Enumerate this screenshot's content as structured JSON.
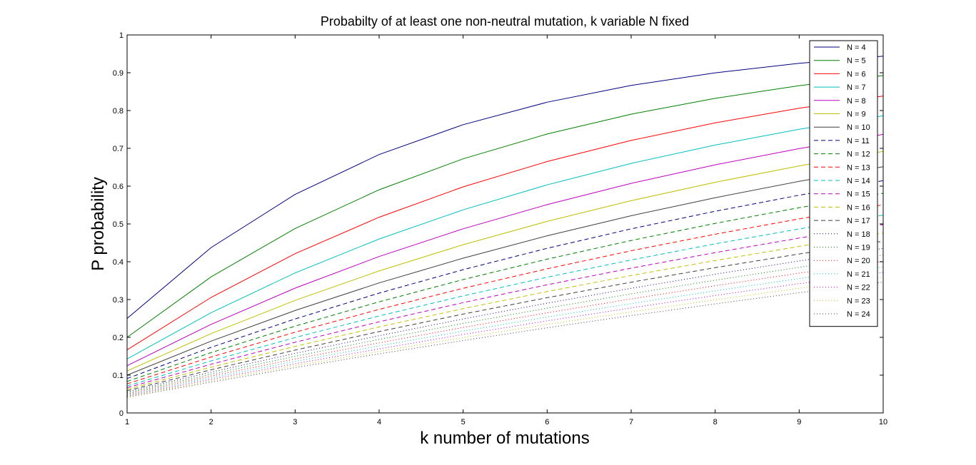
{
  "chart_data": {
    "type": "line",
    "title": "Probabilty of at least one non-neutral mutation, k variable N fixed",
    "xlabel": "k number of mutations",
    "ylabel": "P probability",
    "x": [
      1,
      2,
      3,
      4,
      5,
      6,
      7,
      8,
      9,
      10
    ],
    "xlim": [
      1,
      10
    ],
    "ylim": [
      0,
      1
    ],
    "xticks": [
      "1",
      "2",
      "3",
      "4",
      "5",
      "6",
      "7",
      "8",
      "9",
      "10"
    ],
    "yticks": [
      "0",
      "0.1",
      "0.2",
      "0.3",
      "0.4",
      "0.5",
      "0.6",
      "0.7",
      "0.8",
      "0.9",
      "1"
    ],
    "grid": false,
    "legend_position": "top-right",
    "series": [
      {
        "name": "N = 4",
        "color": "#00007f",
        "style": "solid",
        "values": [
          0.25,
          0.4375,
          0.5781,
          0.6836,
          0.7627,
          0.822,
          0.8665,
          0.8999,
          0.9249,
          0.9437
        ]
      },
      {
        "name": "N = 5",
        "color": "#007f00",
        "style": "solid",
        "values": [
          0.2,
          0.36,
          0.488,
          0.5904,
          0.6723,
          0.7379,
          0.7903,
          0.8322,
          0.8658,
          0.8926
        ]
      },
      {
        "name": "N = 6",
        "color": "#ff0000",
        "style": "solid",
        "values": [
          0.1667,
          0.3056,
          0.4213,
          0.5177,
          0.5981,
          0.6651,
          0.7209,
          0.7674,
          0.8062,
          0.8385
        ]
      },
      {
        "name": "N = 7",
        "color": "#00bfbf",
        "style": "solid",
        "values": [
          0.1429,
          0.2653,
          0.3703,
          0.4602,
          0.5373,
          0.6034,
          0.6601,
          0.7086,
          0.7503,
          0.786
        ]
      },
      {
        "name": "N = 8",
        "color": "#bf00bf",
        "style": "solid",
        "values": [
          0.125,
          0.2344,
          0.3301,
          0.4138,
          0.4871,
          0.5512,
          0.6073,
          0.6564,
          0.6993,
          0.7369
        ]
      },
      {
        "name": "N = 9",
        "color": "#bfbf00",
        "style": "solid",
        "values": [
          0.1111,
          0.2099,
          0.2977,
          0.3757,
          0.4451,
          0.5067,
          0.5615,
          0.6102,
          0.6535,
          0.692
        ]
      },
      {
        "name": "N = 10",
        "color": "#3f3f3f",
        "style": "solid",
        "values": [
          0.1,
          0.19,
          0.271,
          0.3439,
          0.4095,
          0.4686,
          0.5217,
          0.5695,
          0.6126,
          0.6513
        ]
      },
      {
        "name": "N = 11",
        "color": "#00007f",
        "style": "dashed",
        "values": [
          0.0909,
          0.1736,
          0.2487,
          0.317,
          0.3791,
          0.4355,
          0.4869,
          0.5336,
          0.576,
          0.6146
        ]
      },
      {
        "name": "N = 12",
        "color": "#007f00",
        "style": "dashed",
        "values": [
          0.0833,
          0.1597,
          0.2297,
          0.2939,
          0.3528,
          0.4067,
          0.4562,
          0.5015,
          0.543,
          0.5811
        ]
      },
      {
        "name": "N = 13",
        "color": "#ff0000",
        "style": "dashed",
        "values": [
          0.0769,
          0.1479,
          0.2135,
          0.274,
          0.3298,
          0.3814,
          0.429,
          0.4729,
          0.5134,
          0.5508
        ]
      },
      {
        "name": "N = 14",
        "color": "#00bfbf",
        "style": "dashed",
        "values": [
          0.0714,
          0.1378,
          0.1994,
          0.2566,
          0.3097,
          0.359,
          0.4048,
          0.4473,
          0.4868,
          0.5234
        ]
      },
      {
        "name": "N = 15",
        "color": "#bf00bf",
        "style": "dashed",
        "values": [
          0.0667,
          0.1289,
          0.187,
          0.2412,
          0.2918,
          0.339,
          0.3831,
          0.4242,
          0.4626,
          0.4984
        ]
      },
      {
        "name": "N = 16",
        "color": "#bfbf00",
        "style": "dashed",
        "values": [
          0.0625,
          0.1211,
          0.176,
          0.2275,
          0.2758,
          0.3211,
          0.3635,
          0.4033,
          0.4406,
          0.4756
        ]
      },
      {
        "name": "N = 17",
        "color": "#3f3f3f",
        "style": "dashed",
        "values": [
          0.0588,
          0.1142,
          0.1663,
          0.2153,
          0.2615,
          0.3049,
          0.3458,
          0.3843,
          0.4205,
          0.4546
        ]
      },
      {
        "name": "N = 18",
        "color": "#00007f",
        "style": "dotted",
        "values": [
          0.0556,
          0.108,
          0.1576,
          0.2044,
          0.2486,
          0.2903,
          0.3297,
          0.3669,
          0.402,
          0.4352
        ]
      },
      {
        "name": "N = 19",
        "color": "#007f00",
        "style": "dotted",
        "values": [
          0.0526,
          0.1025,
          0.1498,
          0.1945,
          0.2369,
          0.2771,
          0.3151,
          0.3512,
          0.3853,
          0.4177
        ]
      },
      {
        "name": "N = 20",
        "color": "#ff0000",
        "style": "dotted",
        "values": [
          0.05,
          0.0975,
          0.1426,
          0.1855,
          0.2262,
          0.2649,
          0.3017,
          0.3366,
          0.3698,
          0.4013
        ]
      },
      {
        "name": "N = 21",
        "color": "#00bfbf",
        "style": "dotted",
        "values": [
          0.0476,
          0.093,
          0.1362,
          0.1773,
          0.2165,
          0.2538,
          0.2893,
          0.3232,
          0.3554,
          0.3861
        ]
      },
      {
        "name": "N = 22",
        "color": "#bf00bf",
        "style": "dotted",
        "values": [
          0.0455,
          0.0888,
          0.1302,
          0.1697,
          0.2075,
          0.2435,
          0.2779,
          0.3107,
          0.3421,
          0.372
        ]
      },
      {
        "name": "N = 23",
        "color": "#bfbf00",
        "style": "dotted",
        "values": [
          0.0435,
          0.0851,
          0.1249,
          0.1629,
          0.1993,
          0.2341,
          0.2674,
          0.2992,
          0.3297,
          0.3588
        ]
      },
      {
        "name": "N = 24",
        "color": "#3f3f3f",
        "style": "dotted",
        "values": [
          0.0417,
          0.0816,
          0.1198,
          0.1565,
          0.1916,
          0.2253,
          0.2576,
          0.2885,
          0.3181,
          0.3465
        ]
      }
    ]
  }
}
